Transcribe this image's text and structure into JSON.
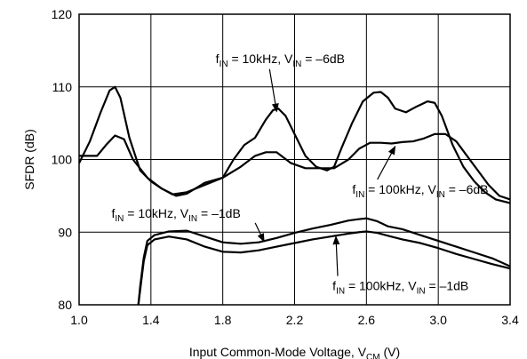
{
  "chart_data": {
    "type": "line",
    "title": "",
    "xlabel": "Input Common-Mode Voltage, V",
    "xlabel_sub": "CM",
    "xlabel_unit": " (V)",
    "ylabel": "SFDR (dB)",
    "xlim": [
      1.0,
      3.4
    ],
    "ylim": [
      80,
      120
    ],
    "x_ticks": [
      1.0,
      1.4,
      1.8,
      2.2,
      2.6,
      3.0,
      3.4
    ],
    "x_tick_labels": [
      "1.0",
      "1.4",
      "1.8",
      "2.2",
      "2.6",
      "3.0",
      "3.4"
    ],
    "y_ticks": [
      80,
      90,
      100,
      110,
      120
    ],
    "y_tick_labels": [
      "80",
      "90",
      "100",
      "110",
      "120"
    ],
    "grid": true,
    "line_color": "#000000",
    "series": [
      {
        "x": [
          1.0,
          1.06,
          1.12,
          1.17,
          1.2,
          1.23,
          1.28,
          1.34,
          1.4,
          1.46,
          1.52,
          1.6,
          1.7,
          1.8,
          1.86,
          1.92,
          1.98,
          2.04,
          2.08,
          2.11,
          2.15,
          2.2,
          2.26,
          2.32,
          2.38,
          2.42,
          2.46,
          2.52,
          2.58,
          2.64,
          2.68,
          2.72,
          2.76,
          2.82,
          2.88,
          2.94,
          2.98,
          3.02,
          3.08,
          3.14,
          3.2,
          3.26,
          3.32,
          3.4
        ],
        "y": [
          99.5,
          102.5,
          106.5,
          109.5,
          110.0,
          108.5,
          103.0,
          98.5,
          97.0,
          96.0,
          95.2,
          95.5,
          96.5,
          97.5,
          100.0,
          102.0,
          103.0,
          105.5,
          106.8,
          107.0,
          106.0,
          103.5,
          100.5,
          99.0,
          98.5,
          99.0,
          101.5,
          105.0,
          108.0,
          109.2,
          109.3,
          108.5,
          107.0,
          106.5,
          107.3,
          108.0,
          107.8,
          106.0,
          102.0,
          99.0,
          97.0,
          95.5,
          94.5,
          94.0
        ]
      },
      {
        "x": [
          1.0,
          1.05,
          1.1,
          1.15,
          1.2,
          1.25,
          1.3,
          1.38,
          1.46,
          1.54,
          1.6,
          1.7,
          1.8,
          1.9,
          1.98,
          2.04,
          2.1,
          2.18,
          2.26,
          2.34,
          2.42,
          2.5,
          2.56,
          2.62,
          2.68,
          2.74,
          2.8,
          2.86,
          2.92,
          2.98,
          3.04,
          3.1,
          3.16,
          3.22,
          3.28,
          3.34,
          3.4
        ],
        "y": [
          100.5,
          100.5,
          100.5,
          102.0,
          103.3,
          102.8,
          100.0,
          97.5,
          96.0,
          95.0,
          95.3,
          96.8,
          97.5,
          99.0,
          100.5,
          101.0,
          101.0,
          99.5,
          98.8,
          98.8,
          98.8,
          100.0,
          101.5,
          102.3,
          102.3,
          102.2,
          102.4,
          102.5,
          102.9,
          103.5,
          103.5,
          102.5,
          100.5,
          98.5,
          96.5,
          95.0,
          94.5
        ]
      },
      {
        "x": [
          1.33,
          1.34,
          1.36,
          1.38,
          1.42,
          1.5,
          1.6,
          1.7,
          1.8,
          1.9,
          2.0,
          2.1,
          2.2,
          2.3,
          2.4,
          2.5,
          2.56,
          2.6,
          2.66,
          2.72,
          2.8,
          2.9,
          3.0,
          3.1,
          3.2,
          3.3,
          3.4
        ],
        "y": [
          80.0,
          82.5,
          86.5,
          88.8,
          89.6,
          90.1,
          90.2,
          89.4,
          88.6,
          88.4,
          88.6,
          89.2,
          89.9,
          90.5,
          91.0,
          91.6,
          91.8,
          91.9,
          91.5,
          90.8,
          90.4,
          89.6,
          88.8,
          88.0,
          87.2,
          86.4,
          85.3
        ]
      },
      {
        "x": [
          1.33,
          1.34,
          1.36,
          1.38,
          1.42,
          1.5,
          1.6,
          1.7,
          1.8,
          1.9,
          2.0,
          2.1,
          2.2,
          2.3,
          2.4,
          2.5,
          2.56,
          2.6,
          2.66,
          2.72,
          2.8,
          2.9,
          3.0,
          3.1,
          3.2,
          3.3,
          3.4
        ],
        "y": [
          80.0,
          82.0,
          86.0,
          88.2,
          89.0,
          89.4,
          89.0,
          88.0,
          87.3,
          87.2,
          87.5,
          88.0,
          88.5,
          89.0,
          89.4,
          89.8,
          90.0,
          90.1,
          89.9,
          89.5,
          89.0,
          88.5,
          87.8,
          87.0,
          86.3,
          85.6,
          85.0
        ]
      }
    ],
    "annotations": [
      {
        "f_label": "f",
        "f_sub": "IN",
        "f_value": " = 10kHz, V",
        "v_sub": "IN",
        "v_value": " = –6dB",
        "text_x": 2.12,
        "text_y": 113.3,
        "arrow_to_x": 2.1,
        "arrow_to_y": 106.6
      },
      {
        "f_label": "f",
        "f_sub": "IN",
        "f_value": " = 100kHz, V",
        "v_sub": "IN",
        "v_value": " = –6dB",
        "text_x": 2.9,
        "text_y": 95.3,
        "arrow_to_x": 2.76,
        "arrow_to_y": 101.8
      },
      {
        "f_label": "f",
        "f_sub": "IN",
        "f_value": " = 10kHz, V",
        "v_sub": "IN",
        "v_value": " = –1dB",
        "text_x": 1.54,
        "text_y": 92.0,
        "arrow_to_x": 2.03,
        "arrow_to_y": 88.7
      },
      {
        "f_label": "f",
        "f_sub": "IN",
        "f_value": " = 100kHz, V",
        "v_sub": "IN",
        "v_value": " = –1dB",
        "text_x": 2.79,
        "text_y": 82.0,
        "arrow_to_x": 2.43,
        "arrow_to_y": 89.4
      }
    ]
  }
}
